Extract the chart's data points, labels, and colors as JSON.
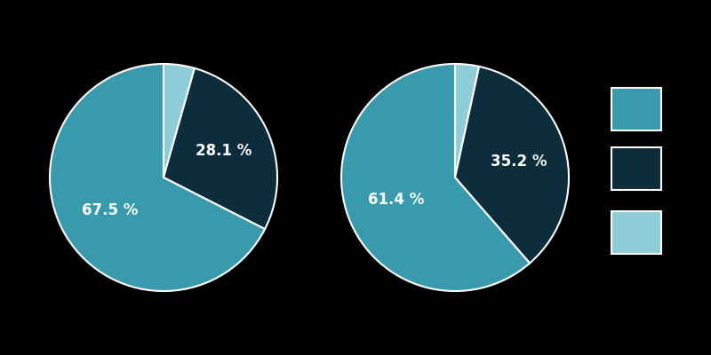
{
  "background_color": "#000000",
  "pie1": {
    "values": [
      4.4,
      28.1,
      67.5
    ],
    "label_indices": [
      1,
      2
    ],
    "labels": [
      "28.1 %",
      "67.5 %"
    ],
    "colors": [
      "#8ecdd8",
      "#0d2d3d",
      "#3a9aad"
    ],
    "startangle": 90,
    "label_radii": [
      0.58,
      0.55
    ]
  },
  "pie2": {
    "values": [
      3.4,
      35.2,
      61.4
    ],
    "label_indices": [
      1,
      2
    ],
    "labels": [
      "35.2 %",
      "61.4 %"
    ],
    "colors": [
      "#8ecdd8",
      "#0d2d3d",
      "#3a9aad"
    ],
    "startangle": 90,
    "label_radii": [
      0.58,
      0.55
    ]
  },
  "legend_colors": [
    "#3a9aad",
    "#0d2d3d",
    "#8ecdd8"
  ],
  "text_color": "#ffffff",
  "label_fontsize": 12
}
